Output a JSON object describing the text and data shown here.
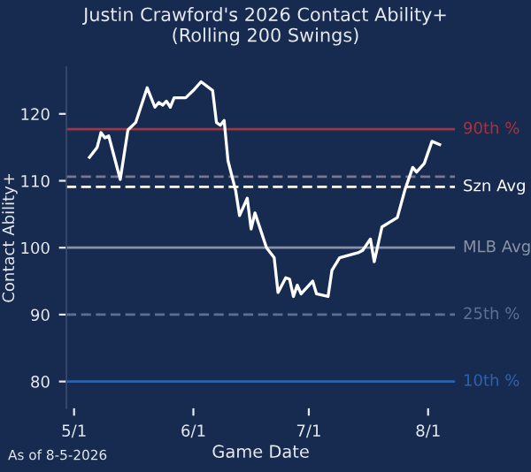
{
  "chart_data": {
    "type": "line",
    "title": "Justin Crawford's 2026 Contact Ability+\n(Rolling 200 Swings)",
    "xlabel": "Game Date",
    "ylabel": "Contact Ability+",
    "x": [
      "2026-05-05",
      "2026-05-07",
      "2026-05-08",
      "2026-05-09",
      "2026-05-10",
      "2026-05-13",
      "2026-05-15",
      "2026-05-17",
      "2026-05-20",
      "2026-05-22",
      "2026-05-23",
      "2026-05-24",
      "2026-05-25",
      "2026-05-26",
      "2026-05-27",
      "2026-05-30",
      "2026-06-01",
      "2026-06-03",
      "2026-06-06",
      "2026-06-07",
      "2026-06-08",
      "2026-06-09",
      "2026-06-10",
      "2026-06-12",
      "2026-06-13",
      "2026-06-15",
      "2026-06-16",
      "2026-06-17",
      "2026-06-20",
      "2026-06-22",
      "2026-06-23",
      "2026-06-25",
      "2026-06-26",
      "2026-06-27",
      "2026-06-28",
      "2026-06-29",
      "2026-07-02",
      "2026-07-03",
      "2026-07-06",
      "2026-07-07",
      "2026-07-09",
      "2026-07-14",
      "2026-07-15",
      "2026-07-17",
      "2026-07-18",
      "2026-07-20",
      "2026-07-24",
      "2026-07-26",
      "2026-07-28",
      "2026-07-29",
      "2026-07-31",
      "2026-08-02",
      "2026-08-04"
    ],
    "series": [
      {
        "color": "#ffffff",
        "values": [
          113.5,
          115,
          117.2,
          116.4,
          116.7,
          110.2,
          117.6,
          118.7,
          123.9,
          121,
          121.7,
          121.3,
          121.9,
          121,
          122.4,
          122.4,
          123.5,
          124.8,
          123.5,
          118.7,
          118.3,
          119,
          113,
          108.5,
          104.8,
          107.4,
          102.8,
          105.2,
          100,
          98.5,
          93.3,
          95.5,
          95.3,
          92.7,
          94.4,
          93.1,
          95,
          93.1,
          92.7,
          96.6,
          98.5,
          99.3,
          99.6,
          101.3,
          97.9,
          103.1,
          104.5,
          108.7,
          112,
          111.3,
          112.6,
          115.9,
          115.4
        ]
      }
    ],
    "xlim": [
      "2026-04-29",
      "2026-08-08"
    ],
    "xticks": [
      {
        "value": "2026-05-01",
        "label": "5/1"
      },
      {
        "value": "2026-06-01",
        "label": "6/1"
      },
      {
        "value": "2026-07-01",
        "label": "7/1"
      },
      {
        "value": "2026-08-01",
        "label": "8/1"
      }
    ],
    "ylim": [
      76,
      127
    ],
    "yticks": [
      80,
      90,
      100,
      110,
      120
    ],
    "ref_lines": [
      {
        "axis": "y",
        "value": 117.7,
        "label": "90th %",
        "color": "#a8333f",
        "line_style": "solid"
      },
      {
        "axis": "y",
        "value": 110.6,
        "label": null,
        "color": "#7a7592",
        "line_style": "dashed"
      },
      {
        "axis": "y",
        "value": 109.1,
        "label": "Szn Avg",
        "color": "#ffffff",
        "line_style": "dashed"
      },
      {
        "axis": "y",
        "value": 100,
        "label": "MLB Avg",
        "color": "#8a93a5",
        "line_style": "solid"
      },
      {
        "axis": "y",
        "value": 90,
        "label": "25th %",
        "color": "#5d6f92",
        "line_style": "dashed"
      },
      {
        "axis": "y",
        "value": 80,
        "label": "10th %",
        "color": "#2d62ad",
        "line_style": "solid"
      }
    ],
    "annotations": [
      "As of 8-5-2026"
    ],
    "grid": false,
    "legend": false,
    "marker": "none",
    "line_style": "solid"
  }
}
